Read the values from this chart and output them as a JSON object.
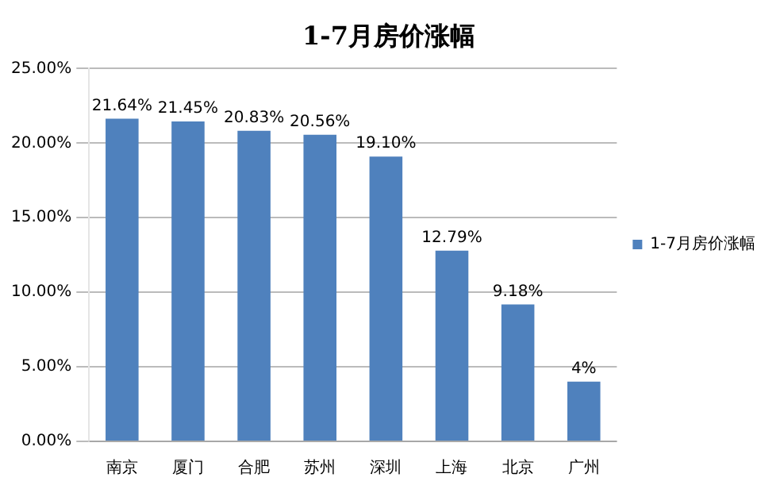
{
  "chart_data": {
    "type": "bar",
    "title": "1-7月房价涨幅",
    "categories": [
      "南京",
      "厦门",
      "合肥",
      "苏州",
      "深圳",
      "上海",
      "北京",
      "广州"
    ],
    "series": [
      {
        "name": "1-7月房价涨幅",
        "color": "#4f81bd",
        "values": [
          21.64,
          21.45,
          20.83,
          20.56,
          19.1,
          12.79,
          9.18,
          4
        ],
        "value_labels": [
          "21.64%",
          "21.45%",
          "20.83%",
          "20.56%",
          "19.10%",
          "12.79%",
          "9.18%",
          "4%"
        ]
      }
    ],
    "ylim": [
      0,
      25
    ],
    "yticks": [
      {
        "value": 0,
        "label": "0.00%"
      },
      {
        "value": 5,
        "label": "5.00%"
      },
      {
        "value": 10,
        "label": "10.00%"
      },
      {
        "value": 15,
        "label": "15.00%"
      },
      {
        "value": 20,
        "label": "20.00%"
      },
      {
        "value": 25,
        "label": "25.00%"
      }
    ],
    "grid": "y",
    "legend": "right"
  }
}
